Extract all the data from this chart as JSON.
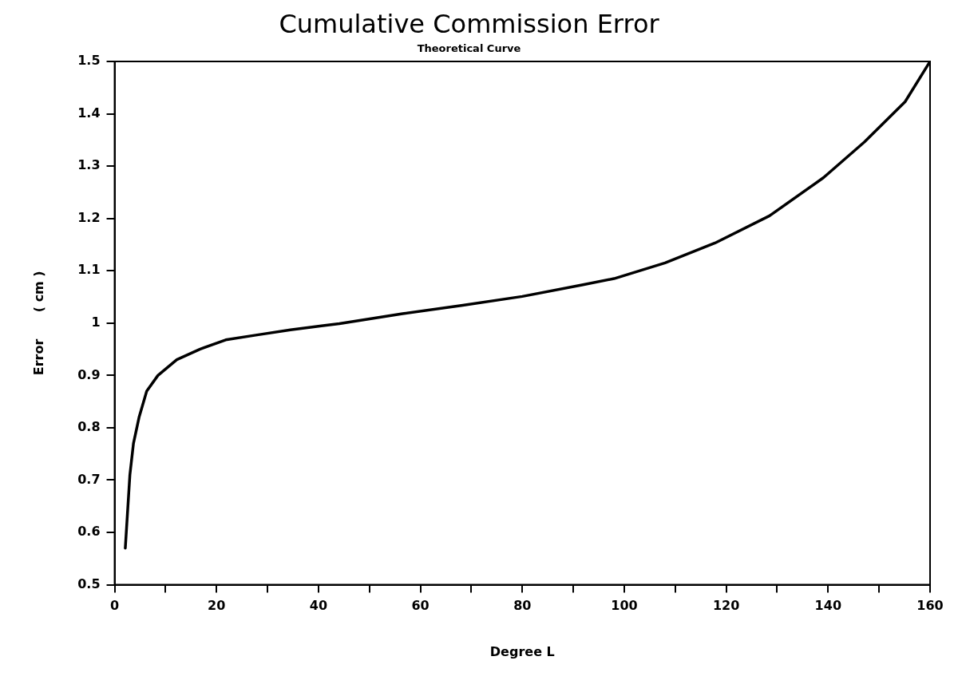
{
  "chart_data": {
    "type": "line",
    "title": "Cumulative Commission Error",
    "subtitle": "Theoretical Curve",
    "xlabel": "Degree L",
    "ylabel": "Error      ( cm )",
    "x": [
      2.1,
      3.0,
      3.7,
      4.8,
      6.3,
      8.5,
      12.2,
      16.7,
      21.8,
      27.7,
      34.5,
      40.9,
      44.1,
      56.5,
      68.3,
      80,
      91.7,
      98,
      108,
      117.8,
      128.5,
      139.1,
      147.1,
      155.1,
      160
    ],
    "series": [
      {
        "color": "#000000",
        "values": [
          0.57,
          0.71,
          0.77,
          0.82,
          0.87,
          0.9,
          0.93,
          0.95,
          0.968,
          0.977,
          0.987,
          0.995,
          0.999,
          1.018,
          1.034,
          1.051,
          1.073,
          1.085,
          1.115,
          1.153,
          1.205,
          1.278,
          1.346,
          1.423,
          1.5
        ]
      }
    ],
    "xlim": [
      0,
      160
    ],
    "xticks": [
      0,
      {
        "value": 10,
        "label": null
      },
      20,
      {
        "value": 30,
        "label": null
      },
      40,
      {
        "value": 50,
        "label": null
      },
      60,
      {
        "value": 70,
        "label": null
      },
      80,
      {
        "value": 90,
        "label": null
      },
      100,
      {
        "value": 110,
        "label": null
      },
      120,
      {
        "value": 130,
        "label": null
      },
      140,
      {
        "value": 150,
        "label": null
      },
      160
    ],
    "ylim": [
      0.5,
      1.5
    ],
    "yticks": [
      0.5,
      0.6,
      0.7,
      0.8,
      0.9,
      1,
      1.1,
      1.2,
      1.3,
      1.4,
      1.5
    ],
    "grid": false,
    "legend": false,
    "marker": "none",
    "line_style": "solid"
  }
}
